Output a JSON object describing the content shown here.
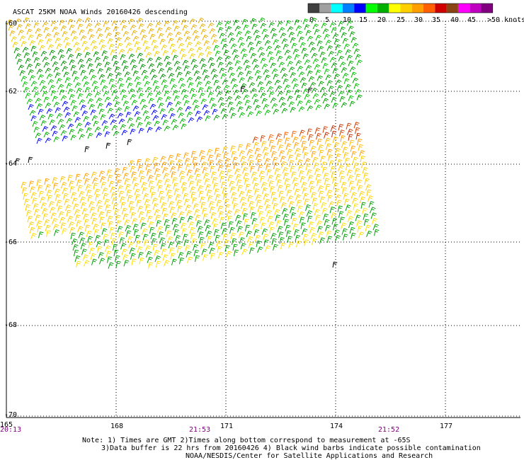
{
  "title": "ASCAT 25KM NOAA Winds 20160426 descending",
  "legend": {
    "unit": ">50 knots",
    "ticks": [
      "0",
      "5",
      "10",
      "15",
      "20",
      "25",
      "30",
      "35",
      "40",
      "45"
    ],
    "colors": [
      "#404040",
      "#a0a0a0",
      "#00ffff",
      "#0080ff",
      "#0000ff",
      "#00ff00",
      "#00b000",
      "#ffff00",
      "#ffd000",
      "#ffa000",
      "#ff6000",
      "#d00000",
      "#8b4513",
      "#ff00ff",
      "#c000c0",
      "#800080"
    ]
  },
  "axes": {
    "lat_labels": [
      "-60",
      "-62",
      "-64",
      "-66",
      "-68",
      "-70"
    ],
    "lon_labels": [
      "165",
      "168",
      "171",
      "174",
      "177"
    ],
    "time_labels": [
      "20:13",
      "21:53",
      "21:52"
    ]
  },
  "notes": {
    "line1": "Note: 1) Times are GMT 2)Times along bottom correspond to measurement at -65S",
    "line2": "3)Data buffer is 22 hrs from 20160426 4) Black wind barbs indicate possible contamination",
    "line3": "NOAA/NESDIS/Center for Satellite Applications and Research"
  },
  "wind_speed_classes": {
    "black": "possible contamination",
    "blue": "10-15",
    "green": "15-20",
    "yellow": "20-25",
    "orange": "25-30",
    "red": "30-35"
  }
}
